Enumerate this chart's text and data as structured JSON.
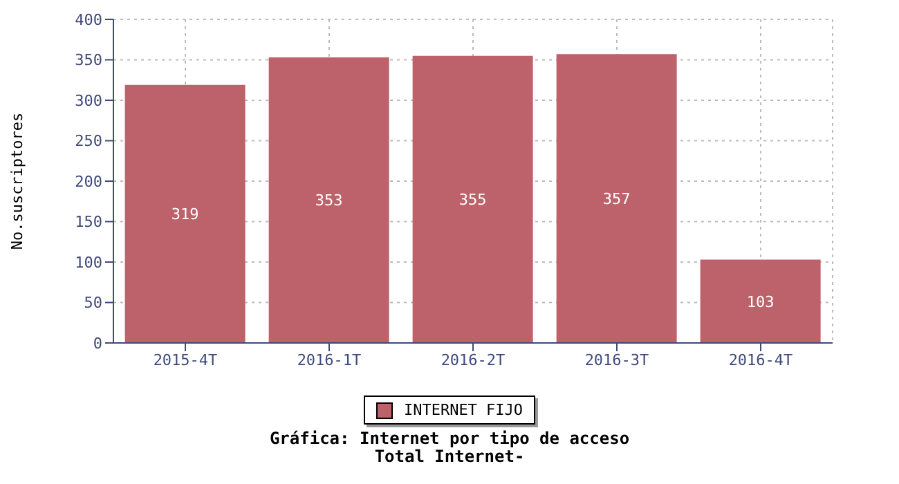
{
  "chart_data": {
    "type": "bar",
    "title": "Gráfica: Internet por tipo de acceso",
    "subtitle": "Total Internet-",
    "ylabel": "No.suscriptores",
    "categories": [
      "2015-4T",
      "2016-1T",
      "2016-2T",
      "2016-3T",
      "2016-4T"
    ],
    "series": [
      {
        "name": "INTERNET FIJO",
        "color": "#bd626a",
        "values": [
          319,
          353,
          355,
          357,
          103
        ]
      }
    ],
    "ylim": [
      0,
      400
    ],
    "yticks": [
      0,
      50,
      100,
      150,
      200,
      250,
      300,
      350,
      400
    ],
    "grid": true,
    "legend": "bottom",
    "data_labels": true
  }
}
